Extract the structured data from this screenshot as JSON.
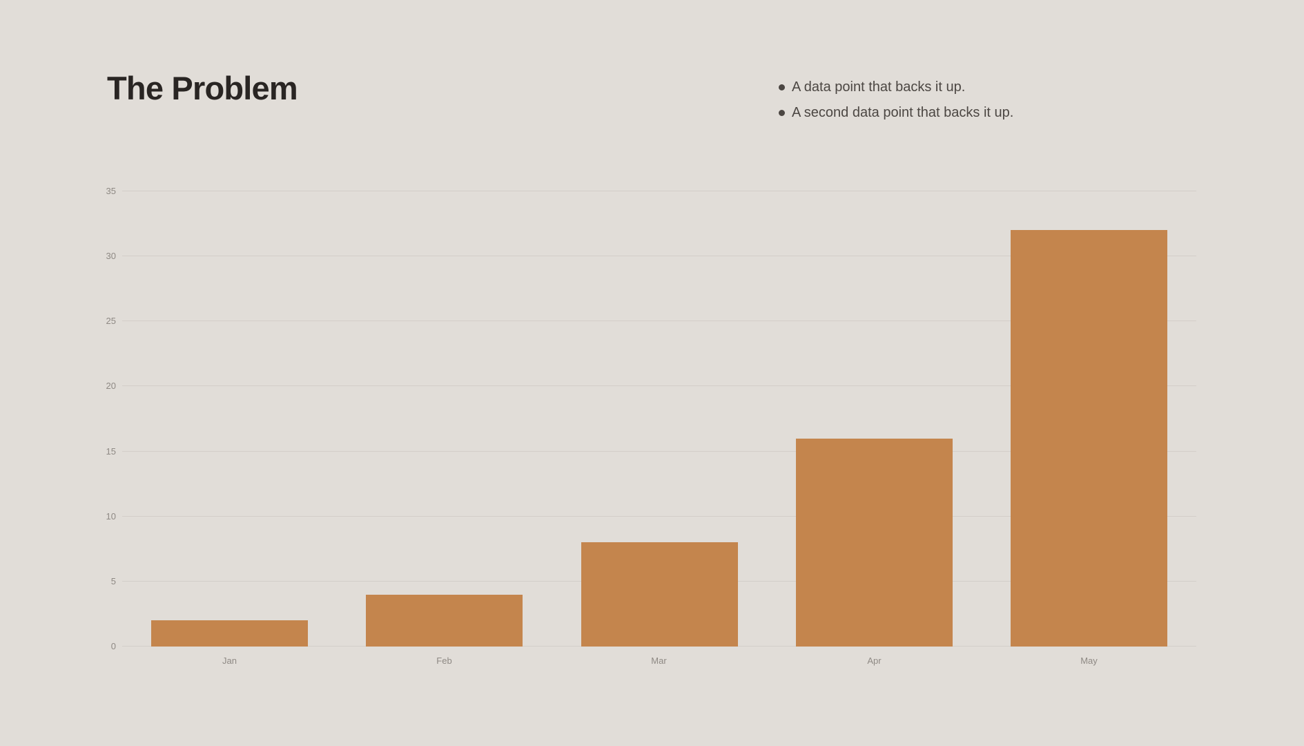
{
  "slide": {
    "title": "The Problem",
    "bullets": [
      "A data point that backs it up.",
      "A second data point that backs it up."
    ]
  },
  "chart_data": {
    "type": "bar",
    "title": "",
    "xlabel": "",
    "ylabel": "",
    "categories": [
      "Jan",
      "Feb",
      "Mar",
      "Apr",
      "May"
    ],
    "values": [
      2,
      4,
      8,
      16,
      32
    ],
    "ylim": [
      0,
      35
    ],
    "yticks": [
      0,
      5,
      10,
      15,
      20,
      25,
      30,
      35
    ],
    "grid": true,
    "legend": false,
    "bar_color": "#c4854d"
  },
  "colors": {
    "background": "#e1ddd8",
    "title_text": "#292523",
    "bullet_text": "#4b4642",
    "axis_text": "#8e8984",
    "gridline": "#d3cec9"
  }
}
